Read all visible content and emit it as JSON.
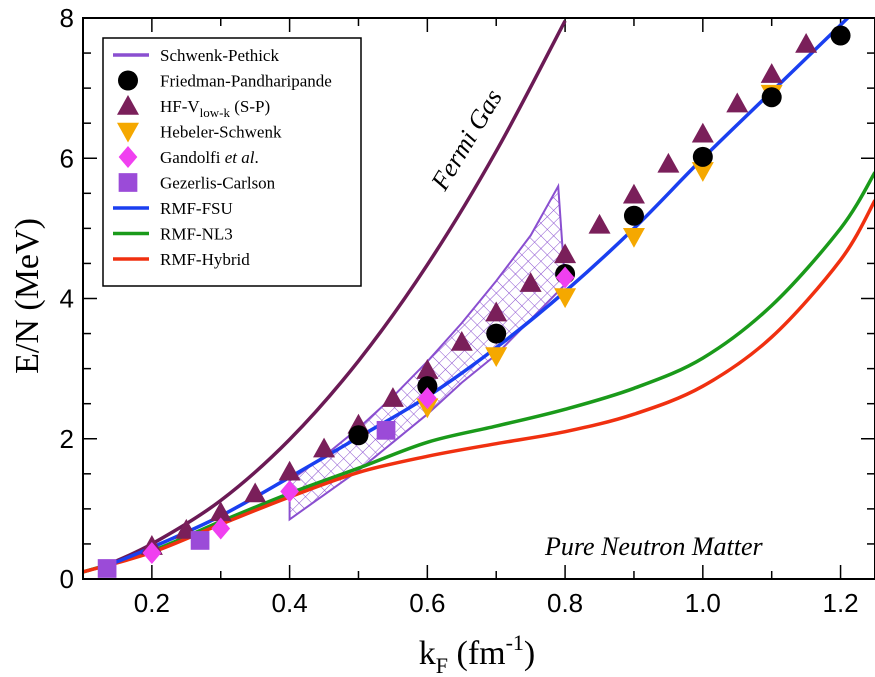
{
  "chart_data": {
    "type": "line",
    "xlim": [
      0.1,
      1.25
    ],
    "ylim": [
      0,
      8
    ],
    "x_ticks": [
      "0.2",
      "0.4",
      "0.6",
      "0.8",
      "1.0",
      "1.2"
    ],
    "y_ticks": [
      "0",
      "2",
      "4",
      "6",
      "8"
    ],
    "y_title": "E/N (MeV)",
    "x_title": {
      "base": "k",
      "base_sub": "F",
      "unit_open": " (fm",
      "unit_exp": "-1",
      "unit_close": ")"
    },
    "legend_placement": "top-left",
    "legend": [
      {
        "text": "Schwenk-Pethick",
        "marker": "line",
        "color": "#8a4fd0"
      },
      {
        "text": "Friedman-Pandharipande",
        "marker": "circle",
        "color": "#000000"
      },
      {
        "text": "HF-V",
        "sub": "low-k",
        "suffix": " (S-P)",
        "marker": "triangle-up",
        "color": "#7a1f5a"
      },
      {
        "text": "Hebeler-Schwenk",
        "marker": "triangle-down",
        "color": "#f5a800"
      },
      {
        "text": "Gandolfi ",
        "italic": "et al",
        "suffix": ".",
        "marker": "diamond",
        "color": "#f040f0"
      },
      {
        "text": "Gezerlis-Carlson",
        "marker": "square",
        "color": "#9b4bd8"
      },
      {
        "text": "RMF-FSU",
        "marker": "line",
        "color": "#1a3ff0"
      },
      {
        "text": "RMF-NL3",
        "marker": "line",
        "color": "#1a9a1a"
      },
      {
        "text": "RMF-Hybrid",
        "marker": "line",
        "color": "#f03010"
      }
    ],
    "annotations": {
      "fermi_gas": "Fermi Gas",
      "pure_neutron_matter": "Pure Neutron Matter"
    },
    "fermi_gas_color": "#6b1a55",
    "curves": {
      "fermi_gas": {
        "x": [
          0.13,
          0.2,
          0.3,
          0.4,
          0.5,
          0.6,
          0.7,
          0.8
        ],
        "y": [
          0.18,
          0.5,
          1.12,
          1.99,
          3.11,
          4.48,
          6.1,
          7.96
        ]
      },
      "fsu": {
        "x": [
          0.13,
          0.2,
          0.3,
          0.4,
          0.5,
          0.6,
          0.7,
          0.8,
          0.9,
          1.0,
          1.1,
          1.2,
          1.21
        ],
        "y": [
          0.17,
          0.45,
          0.9,
          1.45,
          2.02,
          2.6,
          3.3,
          4.1,
          5.0,
          6.0,
          6.95,
          7.9,
          8.0
        ]
      },
      "nl3": {
        "x": [
          0.1,
          0.2,
          0.3,
          0.4,
          0.5,
          0.6,
          0.7,
          0.8,
          0.9,
          1.0,
          1.1,
          1.2,
          1.25
        ],
        "y": [
          0.1,
          0.4,
          0.82,
          1.22,
          1.58,
          1.95,
          2.18,
          2.42,
          2.72,
          3.15,
          3.9,
          5.0,
          5.8
        ]
      },
      "hybrid": {
        "x": [
          0.1,
          0.2,
          0.3,
          0.4,
          0.5,
          0.6,
          0.7,
          0.8,
          0.9,
          1.0,
          1.1,
          1.2,
          1.25
        ],
        "y": [
          0.1,
          0.38,
          0.78,
          1.17,
          1.52,
          1.75,
          1.93,
          2.1,
          2.35,
          2.75,
          3.45,
          4.55,
          5.4
        ]
      }
    },
    "band": {
      "upper": {
        "x": [
          0.4,
          0.45,
          0.5,
          0.55,
          0.6,
          0.65,
          0.7,
          0.75,
          0.79
        ],
        "y": [
          1.4,
          1.75,
          2.15,
          2.6,
          3.1,
          3.65,
          4.25,
          4.9,
          5.6
        ]
      },
      "lower": {
        "x": [
          0.4,
          0.45,
          0.5,
          0.55,
          0.6,
          0.65,
          0.7,
          0.75,
          0.8
        ],
        "y": [
          0.85,
          1.2,
          1.55,
          1.95,
          2.35,
          2.8,
          3.2,
          3.7,
          4.2
        ]
      }
    },
    "series": [
      {
        "name": "Friedman-Pandharipande",
        "marker": "circle",
        "x": [
          0.5,
          0.6,
          0.7,
          0.8,
          0.9,
          1.0,
          1.1,
          1.2
        ],
        "y": [
          2.05,
          2.75,
          3.5,
          4.35,
          5.18,
          6.02,
          6.87,
          7.75
        ]
      },
      {
        "name": "HF-Vlow-k (S-P)",
        "marker": "triangle-up",
        "x": [
          0.2,
          0.25,
          0.3,
          0.35,
          0.4,
          0.45,
          0.5,
          0.55,
          0.6,
          0.65,
          0.7,
          0.75,
          0.8,
          0.85,
          0.9,
          0.95,
          1.0,
          1.05,
          1.1,
          1.15
        ],
        "y": [
          0.47,
          0.7,
          0.95,
          1.22,
          1.53,
          1.86,
          2.2,
          2.58,
          2.98,
          3.38,
          3.8,
          4.22,
          4.63,
          5.05,
          5.48,
          5.92,
          6.35,
          6.78,
          7.2,
          7.63
        ]
      },
      {
        "name": "Hebeler-Schwenk",
        "marker": "triangle-down",
        "x": [
          0.6,
          0.7,
          0.8,
          0.9,
          1.0,
          1.1
        ],
        "y": [
          2.45,
          3.18,
          4.02,
          4.88,
          5.82,
          6.92
        ]
      },
      {
        "name": "Gandolfi et al.",
        "marker": "diamond",
        "x": [
          0.2,
          0.3,
          0.4,
          0.6,
          0.8
        ],
        "y": [
          0.37,
          0.72,
          1.25,
          2.58,
          4.3
        ]
      },
      {
        "name": "Gezerlis-Carlson",
        "marker": "square",
        "x": [
          0.135,
          0.27,
          0.54
        ],
        "y": [
          0.15,
          0.55,
          2.12
        ]
      }
    ]
  }
}
